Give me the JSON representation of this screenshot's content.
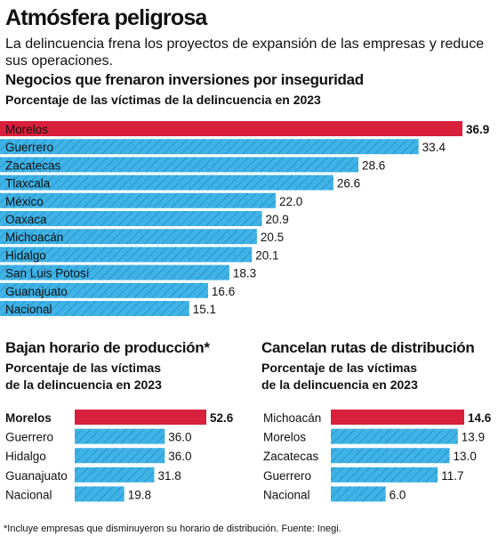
{
  "header": {
    "headline": "Atmósfera peligrosa",
    "dek": "La delincuencia frena los proyectos de expansión de las empresas y reduce sus operaciones."
  },
  "colors": {
    "highlight": "#d81f3c",
    "bar": "#3fb3e6",
    "hatch": "#1c84c0"
  },
  "chart_data": [
    {
      "type": "bar",
      "orientation": "horizontal",
      "title": "Negocios que frenaron inversiones por inseguridad",
      "subtitle": "Porcentaje de  las víctimas de la delincuencia en 2023",
      "categories": [
        "Morelos",
        "Guerrero",
        "Zacatecas",
        "Tlaxcala",
        "México",
        "Oaxaca",
        "Michoacán",
        "Hidalgo",
        "San Luis Potosí",
        "Guanajuato",
        "Nacional"
      ],
      "values": [
        36.9,
        33.4,
        28.6,
        26.6,
        22.0,
        20.9,
        20.5,
        20.1,
        18.3,
        16.6,
        15.1
      ],
      "value_labels": [
        "36.9",
        "33.4",
        "28.6",
        "26.6",
        "22.0",
        "20.9",
        "20.5",
        "20.1",
        "18.3",
        "16.6",
        "15.1"
      ],
      "highlight_index": 0
    },
    {
      "type": "bar",
      "orientation": "horizontal",
      "title": "Bajan horario de producción*",
      "subtitle_lines": [
        "Porcentaje de  las víctimas",
        "de la delincuencia en 2023"
      ],
      "categories": [
        "Morelos",
        "Guerrero",
        "Hidalgo",
        "Guanajuato",
        "Nacional"
      ],
      "values": [
        52.6,
        36.0,
        36.0,
        31.8,
        19.8
      ],
      "value_labels": [
        "52.6",
        "36.0",
        "36.0",
        "31.8",
        "19.8"
      ],
      "highlight_index": 0
    },
    {
      "type": "bar",
      "orientation": "horizontal",
      "title": "Cancelan rutas de distribución",
      "subtitle_lines": [
        "Porcentaje de  las víctimas",
        "de la delincuencia en 2023"
      ],
      "categories": [
        "Michoacán",
        "Morelos",
        "Zacatecas",
        "Guerrero",
        "Nacional"
      ],
      "values": [
        14.6,
        13.9,
        13.0,
        11.7,
        6.0
      ],
      "value_labels": [
        "14.6",
        "13.9",
        "13.0",
        "11.7",
        "6.0"
      ],
      "highlight_index": 0
    }
  ],
  "footnote": "*Incluye empresas que disminuyeron su horario de distribución. Fuente: Inegi."
}
